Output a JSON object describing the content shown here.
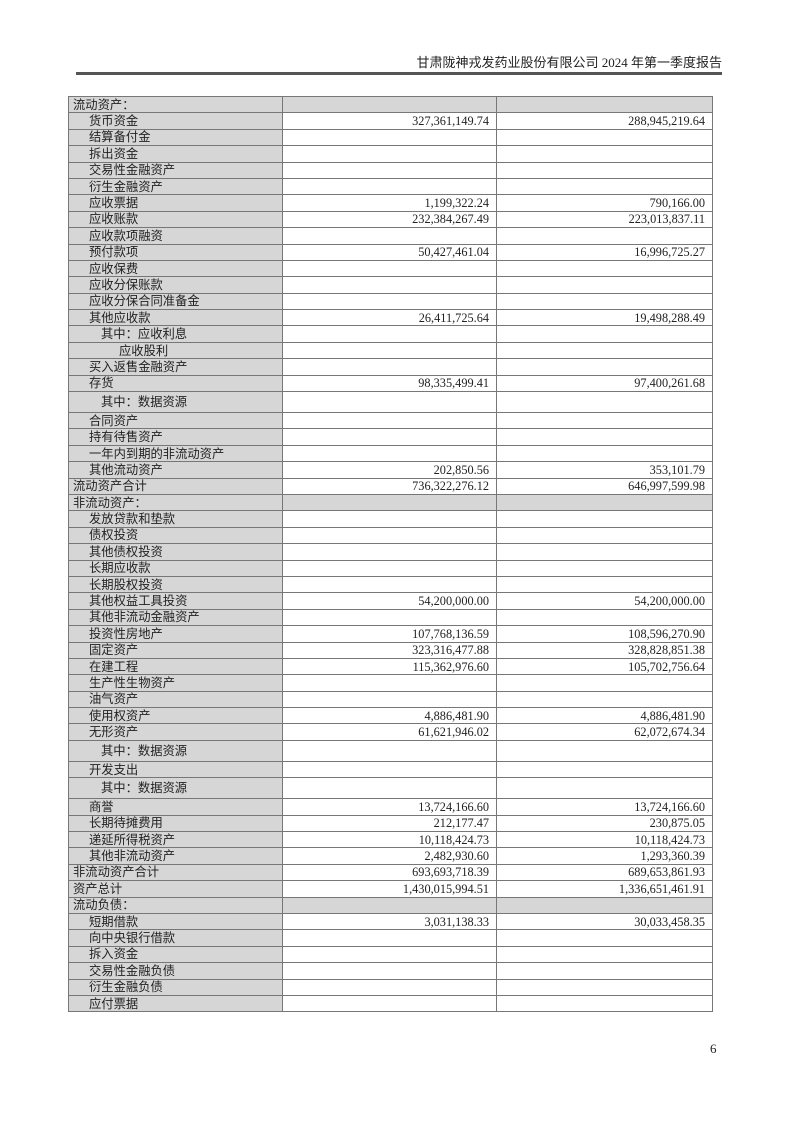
{
  "header": {
    "title": "甘肃陇神戎发药业股份有限公司 2024 年第一季度报告"
  },
  "page_number": "6",
  "rows": [
    {
      "label": "流动资产：",
      "indent": 0,
      "section": true,
      "v1": "",
      "v2": ""
    },
    {
      "label": "货币资金",
      "indent": 1,
      "v1": "327,361,149.74",
      "v2": "288,945,219.64"
    },
    {
      "label": "结算备付金",
      "indent": 1,
      "v1": "",
      "v2": ""
    },
    {
      "label": "拆出资金",
      "indent": 1,
      "v1": "",
      "v2": ""
    },
    {
      "label": "交易性金融资产",
      "indent": 1,
      "v1": "",
      "v2": ""
    },
    {
      "label": "衍生金融资产",
      "indent": 1,
      "v1": "",
      "v2": ""
    },
    {
      "label": "应收票据",
      "indent": 1,
      "v1": "1,199,322.24",
      "v2": "790,166.00"
    },
    {
      "label": "应收账款",
      "indent": 1,
      "v1": "232,384,267.49",
      "v2": "223,013,837.11"
    },
    {
      "label": "应收款项融资",
      "indent": 1,
      "v1": "",
      "v2": ""
    },
    {
      "label": "预付款项",
      "indent": 1,
      "v1": "50,427,461.04",
      "v2": "16,996,725.27"
    },
    {
      "label": "应收保费",
      "indent": 1,
      "v1": "",
      "v2": ""
    },
    {
      "label": "应收分保账款",
      "indent": 1,
      "v1": "",
      "v2": ""
    },
    {
      "label": "应收分保合同准备金",
      "indent": 1,
      "v1": "",
      "v2": ""
    },
    {
      "label": "其他应收款",
      "indent": 1,
      "v1": "26,411,725.64",
      "v2": "19,498,288.49"
    },
    {
      "label": "其中：应收利息",
      "indent": 2,
      "v1": "",
      "v2": ""
    },
    {
      "label": "应收股利",
      "indent": 3,
      "v1": "",
      "v2": ""
    },
    {
      "label": "买入返售金融资产",
      "indent": 1,
      "v1": "",
      "v2": ""
    },
    {
      "label": "存货",
      "indent": 1,
      "v1": "98,335,499.41",
      "v2": "97,400,261.68"
    },
    {
      "label": "其中：数据资源",
      "indent": 2,
      "tall": true,
      "v1": "",
      "v2": ""
    },
    {
      "label": "合同资产",
      "indent": 1,
      "v1": "",
      "v2": ""
    },
    {
      "label": "持有待售资产",
      "indent": 1,
      "v1": "",
      "v2": ""
    },
    {
      "label": "一年内到期的非流动资产",
      "indent": 1,
      "v1": "",
      "v2": ""
    },
    {
      "label": "其他流动资产",
      "indent": 1,
      "v1": "202,850.56",
      "v2": "353,101.79"
    },
    {
      "label": "流动资产合计",
      "indent": 0,
      "v1": "736,322,276.12",
      "v2": "646,997,599.98"
    },
    {
      "label": "非流动资产：",
      "indent": 0,
      "section": true,
      "v1": "",
      "v2": ""
    },
    {
      "label": "发放贷款和垫款",
      "indent": 1,
      "v1": "",
      "v2": ""
    },
    {
      "label": "债权投资",
      "indent": 1,
      "v1": "",
      "v2": ""
    },
    {
      "label": "其他债权投资",
      "indent": 1,
      "v1": "",
      "v2": ""
    },
    {
      "label": "长期应收款",
      "indent": 1,
      "v1": "",
      "v2": ""
    },
    {
      "label": "长期股权投资",
      "indent": 1,
      "v1": "",
      "v2": ""
    },
    {
      "label": "其他权益工具投资",
      "indent": 1,
      "v1": "54,200,000.00",
      "v2": "54,200,000.00"
    },
    {
      "label": "其他非流动金融资产",
      "indent": 1,
      "v1": "",
      "v2": ""
    },
    {
      "label": "投资性房地产",
      "indent": 1,
      "v1": "107,768,136.59",
      "v2": "108,596,270.90"
    },
    {
      "label": "固定资产",
      "indent": 1,
      "v1": "323,316,477.88",
      "v2": "328,828,851.38"
    },
    {
      "label": "在建工程",
      "indent": 1,
      "v1": "115,362,976.60",
      "v2": "105,702,756.64"
    },
    {
      "label": "生产性生物资产",
      "indent": 1,
      "v1": "",
      "v2": ""
    },
    {
      "label": "油气资产",
      "indent": 1,
      "v1": "",
      "v2": ""
    },
    {
      "label": "使用权资产",
      "indent": 1,
      "v1": "4,886,481.90",
      "v2": "4,886,481.90"
    },
    {
      "label": "无形资产",
      "indent": 1,
      "v1": "61,621,946.02",
      "v2": "62,072,674.34"
    },
    {
      "label": "其中：数据资源",
      "indent": 2,
      "tall": true,
      "v1": "",
      "v2": ""
    },
    {
      "label": "开发支出",
      "indent": 1,
      "v1": "",
      "v2": ""
    },
    {
      "label": "其中：数据资源",
      "indent": 2,
      "tall": true,
      "v1": "",
      "v2": ""
    },
    {
      "label": "商誉",
      "indent": 1,
      "v1": "13,724,166.60",
      "v2": "13,724,166.60"
    },
    {
      "label": "长期待摊费用",
      "indent": 1,
      "v1": "212,177.47",
      "v2": "230,875.05"
    },
    {
      "label": "递延所得税资产",
      "indent": 1,
      "v1": "10,118,424.73",
      "v2": "10,118,424.73"
    },
    {
      "label": "其他非流动资产",
      "indent": 1,
      "v1": "2,482,930.60",
      "v2": "1,293,360.39"
    },
    {
      "label": "非流动资产合计",
      "indent": 0,
      "v1": "693,693,718.39",
      "v2": "689,653,861.93"
    },
    {
      "label": "资产总计",
      "indent": 0,
      "v1": "1,430,015,994.51",
      "v2": "1,336,651,461.91"
    },
    {
      "label": "流动负债：",
      "indent": 0,
      "section": true,
      "v1": "",
      "v2": ""
    },
    {
      "label": "短期借款",
      "indent": 1,
      "v1": "3,031,138.33",
      "v2": "30,033,458.35"
    },
    {
      "label": "向中央银行借款",
      "indent": 1,
      "v1": "",
      "v2": ""
    },
    {
      "label": "拆入资金",
      "indent": 1,
      "v1": "",
      "v2": ""
    },
    {
      "label": "交易性金融负债",
      "indent": 1,
      "v1": "",
      "v2": ""
    },
    {
      "label": "衍生金融负债",
      "indent": 1,
      "v1": "",
      "v2": ""
    },
    {
      "label": "应付票据",
      "indent": 1,
      "v1": "",
      "v2": ""
    }
  ]
}
